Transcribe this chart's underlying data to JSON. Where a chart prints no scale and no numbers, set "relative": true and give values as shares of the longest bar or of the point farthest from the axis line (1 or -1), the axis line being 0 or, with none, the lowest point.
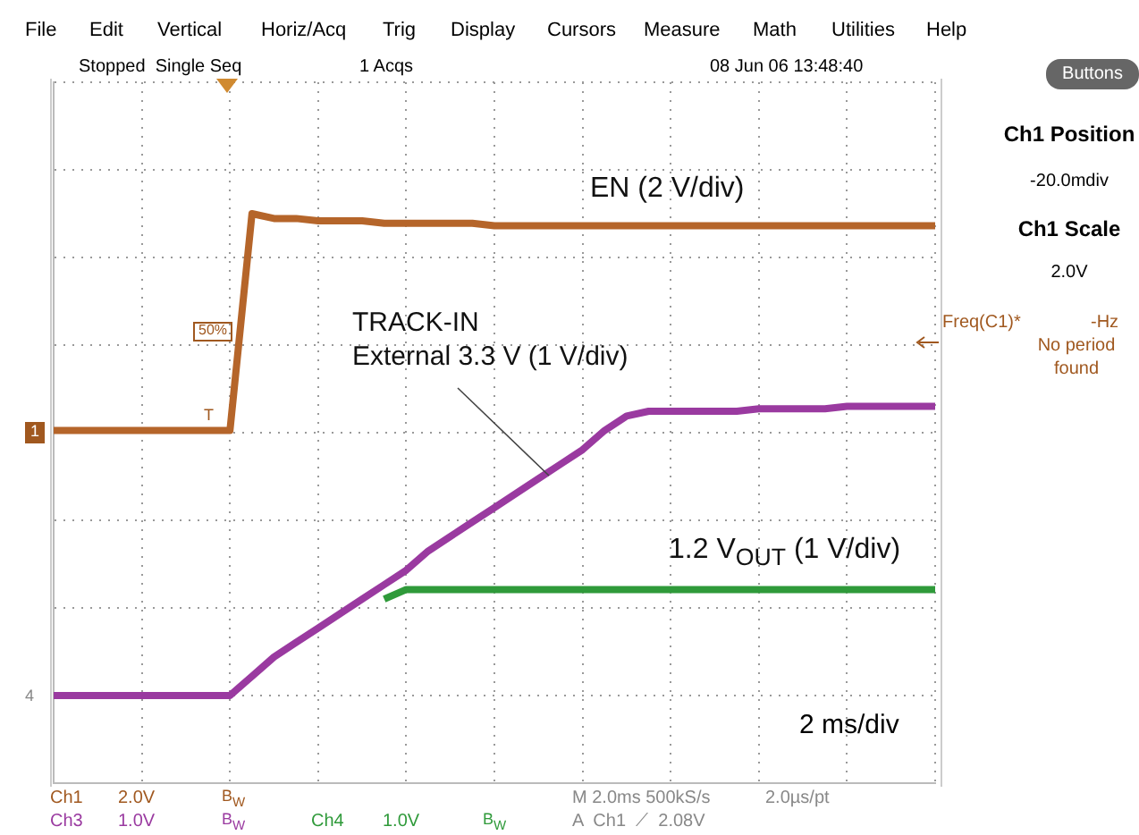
{
  "chart_data": {
    "type": "line",
    "relative": true,
    "grid": true,
    "categories": [
      null,
      null,
      null,
      null,
      null,
      null,
      null,
      null,
      null,
      null,
      null,
      null,
      null,
      null,
      null,
      null,
      null,
      null,
      null,
      null,
      null,
      null,
      null,
      null,
      null,
      null,
      null,
      null,
      null,
      null,
      null,
      null,
      null,
      null,
      null,
      null,
      null,
      null,
      null,
      null,
      null
    ],
    "series": [
      {
        "name": "EN (2 V/div)",
        "color": "#b5652a",
        "values": [
          0.55,
          0.55,
          0.55,
          0.55,
          0.55,
          0.55,
          0.55,
          0.55,
          0.55,
          1.0,
          0.99,
          0.99,
          0.985,
          0.985,
          0.985,
          0.98,
          0.98,
          0.98,
          0.98,
          0.98,
          0.975,
          0.975,
          0.975,
          0.975,
          0.975,
          0.975,
          0.975,
          0.975,
          0.975,
          0.975,
          0.975,
          0.975,
          0.975,
          0.975,
          0.975,
          0.975,
          0.975,
          0.975,
          0.975,
          0.975,
          0.975
        ]
      },
      {
        "name": "1.2 V$_{OUT}$ (1 V/div)",
        "color": "#2f9a3a",
        "values": [
          null,
          null,
          null,
          null,
          null,
          null,
          null,
          null,
          null,
          null,
          null,
          null,
          null,
          null,
          null,
          0.2,
          0.22,
          0.22,
          0.22,
          0.22,
          0.22,
          0.22,
          0.22,
          0.22,
          0.22,
          0.22,
          0.22,
          0.22,
          0.22,
          0.22,
          0.22,
          0.22,
          0.22,
          0.22,
          0.22,
          0.22,
          0.22,
          0.22,
          0.22,
          0.22,
          0.22
        ]
      },
      {
        "name": "TRACK-IN\nExternal 3.3 V (1 V/div)",
        "color": "#9a3aa0",
        "values": [
          0,
          0,
          0,
          0,
          0,
          0,
          0,
          0,
          0,
          0.04,
          0.08,
          0.11,
          0.14,
          0.17,
          0.2,
          0.23,
          0.26,
          0.3,
          0.33,
          0.36,
          0.39,
          0.42,
          0.45,
          0.48,
          0.51,
          0.55,
          0.58,
          0.59,
          0.59,
          0.59,
          0.59,
          0.59,
          0.595,
          0.595,
          0.595,
          0.595,
          0.6,
          0.6,
          0.6,
          0.6,
          0.6
        ]
      }
    ],
    "annotations": [
      "File",
      "Edit",
      "Vertical",
      "Horiz/Acq",
      "Trig",
      "Display",
      "Cursors",
      "Measure",
      "Math",
      "Utilities",
      "Help",
      "Stopped  Single Seq",
      "1 Acqs",
      "08 Jun 06 13:48:40",
      "Buttons",
      "Ch1 Position",
      "-20.0mdiv",
      "Ch1 Scale",
      "2.0V",
      "Freq(C1)*",
      "-Hz",
      "No period found",
      "2 ms/div",
      "Ch1",
      "2.0V",
      "B$_{W}$",
      "M 2.0ms 500kS/s",
      "2.0µs/pt",
      "Ch3",
      "1.0V",
      "B$_{W}$",
      "Ch4",
      "1.0V",
      "B$_{W}$",
      "A  Ch1  ⟋  2.08V",
      "50%",
      "1",
      "4",
      "T"
    ]
  }
}
